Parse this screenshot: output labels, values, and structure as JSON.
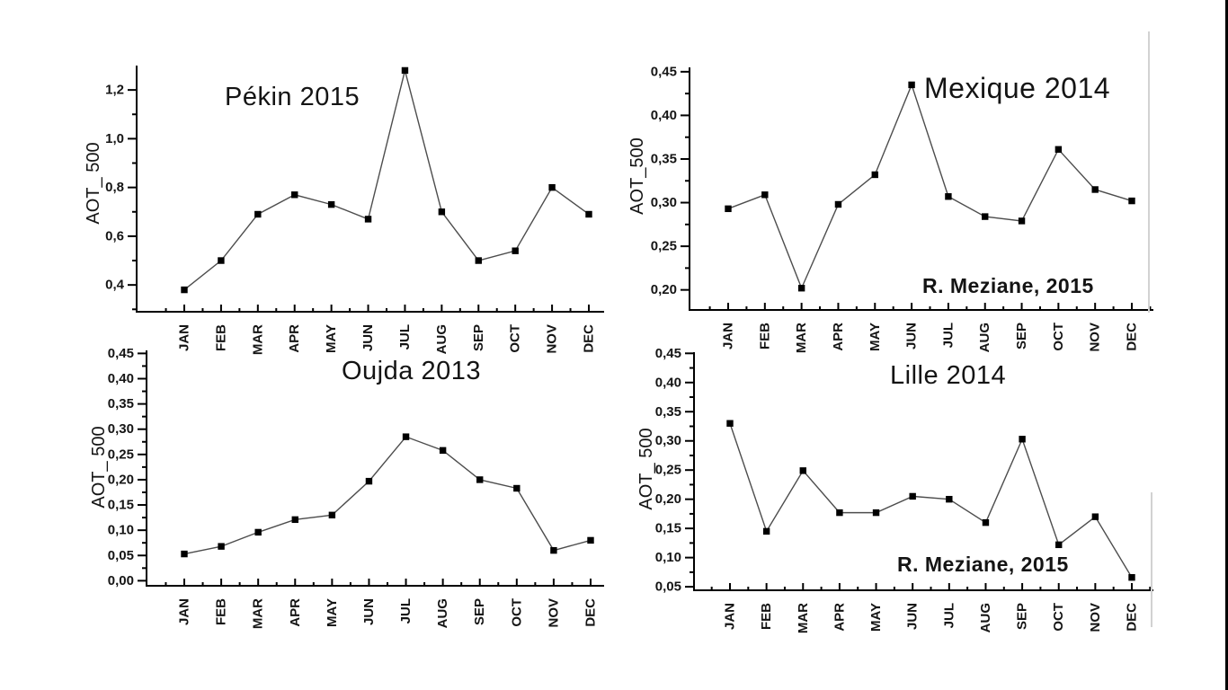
{
  "page": {
    "background": "#ffffff",
    "right_border_color": "#000000",
    "text_color": "#141414",
    "line_color": "#4d4d4d",
    "marker_color": "#000000"
  },
  "months": [
    "JAN",
    "FEB",
    "MAR",
    "APR",
    "MAY",
    "JUN",
    "JUL",
    "AUG",
    "SEP",
    "OCT",
    "NOV",
    "DEC"
  ],
  "chart_data": [
    {
      "type": "line",
      "title": "Pékin 2015",
      "ylabel": "AOT_ 500",
      "xlabel": "",
      "categories": [
        "JAN",
        "FEB",
        "MAR",
        "APR",
        "MAY",
        "JUN",
        "JUL",
        "AUG",
        "SEP",
        "OCT",
        "NOV",
        "DEC"
      ],
      "values": [
        0.38,
        0.5,
        0.69,
        0.77,
        0.73,
        0.67,
        1.28,
        0.7,
        0.5,
        0.54,
        0.8,
        0.69
      ],
      "ylim": [
        0.29,
        1.3
      ],
      "yticks": {
        "start": 0.4,
        "end": 1.2,
        "step": 0.2,
        "decimals": 1
      },
      "decimal_separator": ",",
      "grid": false,
      "legend": "none",
      "marker": "square",
      "annotation": ""
    },
    {
      "type": "line",
      "title": "Mexique 2014",
      "ylabel": "AOT_500",
      "xlabel": "",
      "categories": [
        "JAN",
        "FEB",
        "MAR",
        "APR",
        "MAY",
        "JUN",
        "JUL",
        "AUG",
        "SEP",
        "OCT",
        "NOV",
        "DEC"
      ],
      "values": [
        0.293,
        0.309,
        0.202,
        0.298,
        0.332,
        0.435,
        0.307,
        0.284,
        0.279,
        0.361,
        0.315,
        0.302
      ],
      "ylim": [
        0.177,
        0.455
      ],
      "yticks": {
        "start": 0.2,
        "end": 0.45,
        "step": 0.05,
        "decimals": 2
      },
      "decimal_separator": ",",
      "grid": false,
      "legend": "none",
      "marker": "square",
      "annotation": "R. Meziane, 2015"
    },
    {
      "type": "line",
      "title": "Oujda 2013",
      "ylabel": "AOT_ 500",
      "xlabel": "",
      "categories": [
        "JAN",
        "FEB",
        "MAR",
        "APR",
        "MAY",
        "JUN",
        "JUL",
        "AUG",
        "SEP",
        "OCT",
        "NOV",
        "DEC"
      ],
      "values": [
        0.053,
        0.068,
        0.096,
        0.121,
        0.13,
        0.197,
        0.285,
        0.258,
        0.2,
        0.183,
        0.06,
        0.08
      ],
      "ylim": [
        -0.01,
        0.456
      ],
      "yticks": {
        "start": 0.0,
        "end": 0.45,
        "step": 0.05,
        "decimals": 2
      },
      "decimal_separator": ",",
      "grid": false,
      "legend": "none",
      "marker": "square",
      "annotation": ""
    },
    {
      "type": "line",
      "title": "Lille 2014",
      "ylabel": "AOT_ 500",
      "xlabel": "",
      "categories": [
        "JAN",
        "FEB",
        "MAR",
        "APR",
        "MAY",
        "JUN",
        "JUL",
        "AUG",
        "SEP",
        "OCT",
        "NOV",
        "DEC"
      ],
      "values": [
        0.33,
        0.145,
        0.249,
        0.177,
        0.177,
        0.205,
        0.2,
        0.16,
        0.303,
        0.122,
        0.17,
        0.066
      ],
      "ylim": [
        0.044,
        0.452
      ],
      "yticks": {
        "start": 0.05,
        "end": 0.45,
        "step": 0.05,
        "decimals": 2
      },
      "decimal_separator": ",",
      "grid": false,
      "legend": "none",
      "marker": "square",
      "annotation": "R. Meziane, 2015"
    }
  ]
}
